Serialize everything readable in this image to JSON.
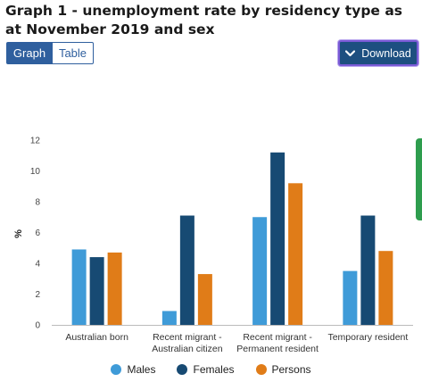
{
  "header": {
    "title": "Graph 1 - unemployment rate by residency type as at November 2019 and sex"
  },
  "tabs": [
    {
      "label": "Graph",
      "active": true
    },
    {
      "label": "Table",
      "active": false
    }
  ],
  "download": {
    "label": "Download",
    "icon": "chevron-down-icon"
  },
  "colors": {
    "males": "#3f9bd8",
    "females": "#174a73",
    "persons": "#e07c18",
    "accent": "#2f5f9e",
    "side_tab": "#2e9d4e"
  },
  "chart_data": {
    "type": "bar",
    "categories": [
      [
        "Australian born"
      ],
      [
        "Recent migrant -",
        "Australian citizen"
      ],
      [
        "Recent migrant -",
        "Permanent resident"
      ],
      [
        "Temporary resident"
      ]
    ],
    "series": [
      {
        "name": "Males",
        "color": "#3f9bd8",
        "values": [
          4.9,
          0.9,
          7.0,
          3.5
        ]
      },
      {
        "name": "Females",
        "color": "#174a73",
        "values": [
          4.4,
          7.1,
          11.2,
          7.1
        ]
      },
      {
        "name": "Persons",
        "color": "#e07c18",
        "values": [
          4.7,
          3.3,
          9.2,
          4.8
        ]
      }
    ],
    "ylabel": "%",
    "xlabel": "",
    "ylim": [
      0,
      12
    ],
    "yticks": [
      0,
      2,
      4,
      6,
      8,
      10,
      12
    ],
    "grid": false,
    "legend_position": "bottom"
  }
}
